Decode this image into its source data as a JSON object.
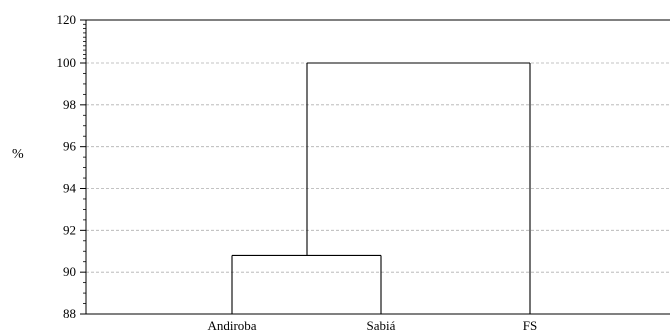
{
  "chart_data": {
    "type": "dendrogram",
    "title": "",
    "xlabel": "",
    "ylabel": "%",
    "ylim": [
      88,
      120
    ],
    "yticks": [
      88,
      90,
      92,
      94,
      96,
      98,
      100,
      120
    ],
    "grid": "horizontal dashed",
    "leaves": [
      "Andiroba",
      "Sabiá",
      "FS"
    ],
    "merges": [
      {
        "left": "Andiroba",
        "right": "Sabiá",
        "height": 90.8
      },
      {
        "left": "Andiroba+Sabiá",
        "right": "FS",
        "height": 100
      }
    ],
    "colors": {
      "lines": "#000000",
      "grid": "#b0b0b0"
    }
  }
}
